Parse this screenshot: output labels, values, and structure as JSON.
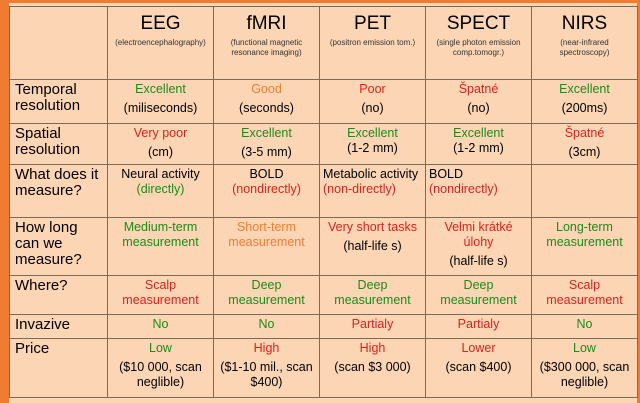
{
  "columns": [
    {
      "name": "EEG",
      "sub": "(electroencephalography)"
    },
    {
      "name": "fMRI",
      "sub": "(functional magnetic resonance imaging)"
    },
    {
      "name": "PET",
      "sub": "(positron emission tom.)"
    },
    {
      "name": "SPECT",
      "sub": "(single photon emission comp.tomogr.)"
    },
    {
      "name": "NIRS",
      "sub": "(near-infrared spectroscopy)"
    }
  ],
  "rows": {
    "temporal": {
      "label": "Temporal resolution",
      "cells": [
        {
          "rating": "Excellent",
          "detail": "(miliseconds)"
        },
        {
          "rating": "Good",
          "detail": "(seconds)"
        },
        {
          "rating": "Poor",
          "detail": "(no)"
        },
        {
          "rating": "Špatné",
          "detail": "(no)"
        },
        {
          "rating": "Excellent",
          "detail": "(200ms)"
        }
      ]
    },
    "spatial": {
      "label": "Spatial resolution",
      "cells": [
        {
          "rating": "Very poor",
          "detail": "(cm)"
        },
        {
          "rating": "Excellent",
          "detail": "(3-5 mm)"
        },
        {
          "rating": "Excellent",
          "detail": "(1-2 mm)"
        },
        {
          "rating": "Excellent",
          "detail": "(1-2 mm)"
        },
        {
          "rating": "Špatné",
          "detail": "(3cm)"
        }
      ]
    },
    "measure": {
      "label": "What does it measure?",
      "cells": [
        {
          "what": "Neural activity",
          "how": "(directly)"
        },
        {
          "what": "BOLD",
          "how": "(nondirectly)"
        },
        {
          "what": "Metabolic activity",
          "how": "(non-directly)"
        },
        {
          "what": "BOLD",
          "how": "(nondirectly)"
        },
        {
          "what": "",
          "how": ""
        }
      ]
    },
    "duration": {
      "label": "How long can we measure?",
      "cells": [
        {
          "text": "Medium-term measurement",
          "detail": ""
        },
        {
          "text": "Short-term measurement",
          "detail": ""
        },
        {
          "text": "Very short tasks",
          "detail": "(half-life s)"
        },
        {
          "text": "Velmi krátké úlohy",
          "detail": "(half-life s)"
        },
        {
          "text": "Long-term measurement",
          "detail": ""
        }
      ]
    },
    "where": {
      "label": "Where?",
      "cells": [
        "Scalp measurement",
        "Deep measurement",
        "Deep measurement",
        "Deep measurement",
        "Scalp measurement"
      ]
    },
    "invasive": {
      "label": "Invazive",
      "cells": [
        "No",
        "No",
        "Partialy",
        "Partialy",
        "No"
      ]
    },
    "price": {
      "label": "Price",
      "cells": [
        {
          "level": "Low",
          "detail": "($10 000, scan neglible)"
        },
        {
          "level": "High",
          "detail": "($1-10 mil., scan $400)"
        },
        {
          "level": "High",
          "detail": "(scan $3 000)"
        },
        {
          "level": "Lower",
          "detail": "(scan $400)"
        },
        {
          "level": "Low",
          "detail": "($300 000, scan neglible)"
        }
      ]
    }
  },
  "colors": {
    "background": "#fcd5b5",
    "frame": "#f07c32",
    "good": "#1a8c1a",
    "bad": "#e0201c",
    "medium": "#f07c32"
  }
}
